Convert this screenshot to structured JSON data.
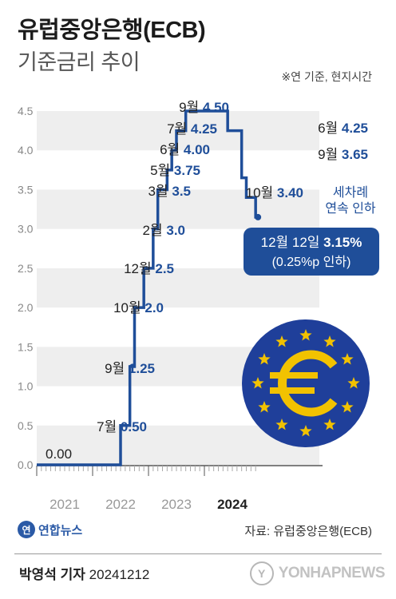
{
  "header": {
    "title": "유럽중앙은행(ECB)",
    "subtitle": "기준금리 추이",
    "note": "※연 기준, 현지시간"
  },
  "colors": {
    "line": "#1f4e99",
    "label_value": "#1f4e99",
    "band": "#eeeeee",
    "callout_bg": "#1f4e99",
    "flag_blue": "#1f3f9a",
    "flag_yellow": "#f2c200"
  },
  "chart_data": {
    "type": "line",
    "step": true,
    "title": "기준금리 추이",
    "ylim": [
      0,
      4.5
    ],
    "y_ticks": [
      "0.0",
      "0.5",
      "1.0",
      "1.5",
      "2.0",
      "2.5",
      "3.0",
      "3.5",
      "4.0",
      "4.5"
    ],
    "x_year_labels": [
      "2021",
      "2022",
      "2023",
      "2024"
    ],
    "x_year_label_bold": [
      "2024"
    ],
    "series": [
      {
        "values": [
          {
            "date": "2021-01",
            "rate": 0.0
          },
          {
            "date": "2022-07",
            "rate": 0.5
          },
          {
            "date": "2022-09",
            "rate": 1.25
          },
          {
            "date": "2022-10",
            "rate": 2.0
          },
          {
            "date": "2022-12",
            "rate": 2.5
          },
          {
            "date": "2023-02",
            "rate": 3.0
          },
          {
            "date": "2023-03",
            "rate": 3.5
          },
          {
            "date": "2023-05",
            "rate": 3.75
          },
          {
            "date": "2023-06",
            "rate": 4.0
          },
          {
            "date": "2023-07",
            "rate": 4.25
          },
          {
            "date": "2023-09",
            "rate": 4.5
          },
          {
            "date": "2024-06",
            "rate": 4.25
          },
          {
            "date": "2024-09",
            "rate": 3.65
          },
          {
            "date": "2024-10",
            "rate": 3.4
          },
          {
            "date": "2024-12",
            "rate": 3.15
          }
        ]
      }
    ],
    "annotations": [
      {
        "month": "",
        "value": "0.00"
      },
      {
        "month": "7월",
        "value": "0.50"
      },
      {
        "month": "9월",
        "value": "1.25"
      },
      {
        "month": "10월",
        "value": "2.0"
      },
      {
        "month": "12월",
        "value": "2.5"
      },
      {
        "month": "2월",
        "value": "3.0"
      },
      {
        "month": "3월",
        "value": "3.5"
      },
      {
        "month": "5월",
        "value": "3.75"
      },
      {
        "month": "6월",
        "value": "4.00"
      },
      {
        "month": "7월",
        "value": "4.25"
      },
      {
        "month": "9월",
        "value": "4.50"
      },
      {
        "month": "6월",
        "value": "4.25"
      },
      {
        "month": "9월",
        "value": "3.65"
      },
      {
        "month": "10월",
        "value": "3.40"
      }
    ],
    "side_note": [
      "세차례",
      "연속 인하"
    ],
    "callout": {
      "month": "12월 12일",
      "value": "3.15%",
      "sub": "(0.25%p 인하)"
    }
  },
  "footer": {
    "logo_text": "연합뉴스",
    "source": "자료: 유럽중앙은행(ECB)",
    "reporter": "박영석 기자",
    "date": "20241212",
    "watermark": "YONHAPNEWS"
  }
}
